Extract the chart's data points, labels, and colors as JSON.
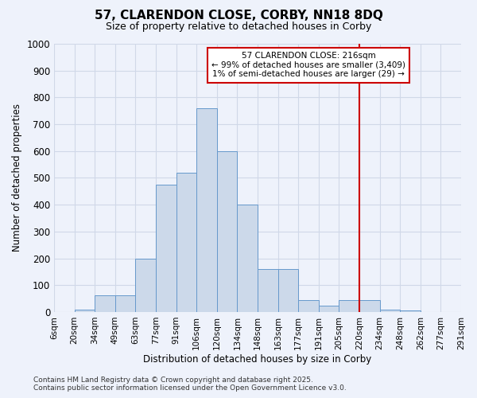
{
  "title": "57, CLARENDON CLOSE, CORBY, NN18 8DQ",
  "subtitle": "Size of property relative to detached houses in Corby",
  "xlabel": "Distribution of detached houses by size in Corby",
  "ylabel": "Number of detached properties",
  "footer_line1": "Contains HM Land Registry data © Crown copyright and database right 2025.",
  "footer_line2": "Contains public sector information licensed under the Open Government Licence v3.0.",
  "bin_labels": [
    "6sqm",
    "20sqm",
    "34sqm",
    "49sqm",
    "63sqm",
    "77sqm",
    "91sqm",
    "106sqm",
    "120sqm",
    "134sqm",
    "148sqm",
    "163sqm",
    "177sqm",
    "191sqm",
    "205sqm",
    "220sqm",
    "234sqm",
    "248sqm",
    "262sqm",
    "277sqm",
    "291sqm"
  ],
  "bar_values": [
    0,
    10,
    63,
    63,
    200,
    475,
    520,
    760,
    600,
    400,
    160,
    160,
    43,
    25,
    43,
    43,
    10,
    5,
    0,
    0
  ],
  "bar_color": "#ccd9ea",
  "bar_edge_color": "#6699cc",
  "vline_x_index": 15,
  "vline_color": "#cc0000",
  "ylim": [
    0,
    1000
  ],
  "yticks": [
    0,
    100,
    200,
    300,
    400,
    500,
    600,
    700,
    800,
    900,
    1000
  ],
  "annotation_line1": "57 CLARENDON CLOSE: 216sqm",
  "annotation_line2": "← 99% of detached houses are smaller (3,409)",
  "annotation_line3": "1% of semi-detached houses are larger (29) →",
  "annotation_box_color": "#ffffff",
  "annotation_box_edge_color": "#cc0000",
  "bg_color": "#eef2fb",
  "grid_color": "#d0d8e8",
  "title_fontsize": 11,
  "subtitle_fontsize": 9
}
